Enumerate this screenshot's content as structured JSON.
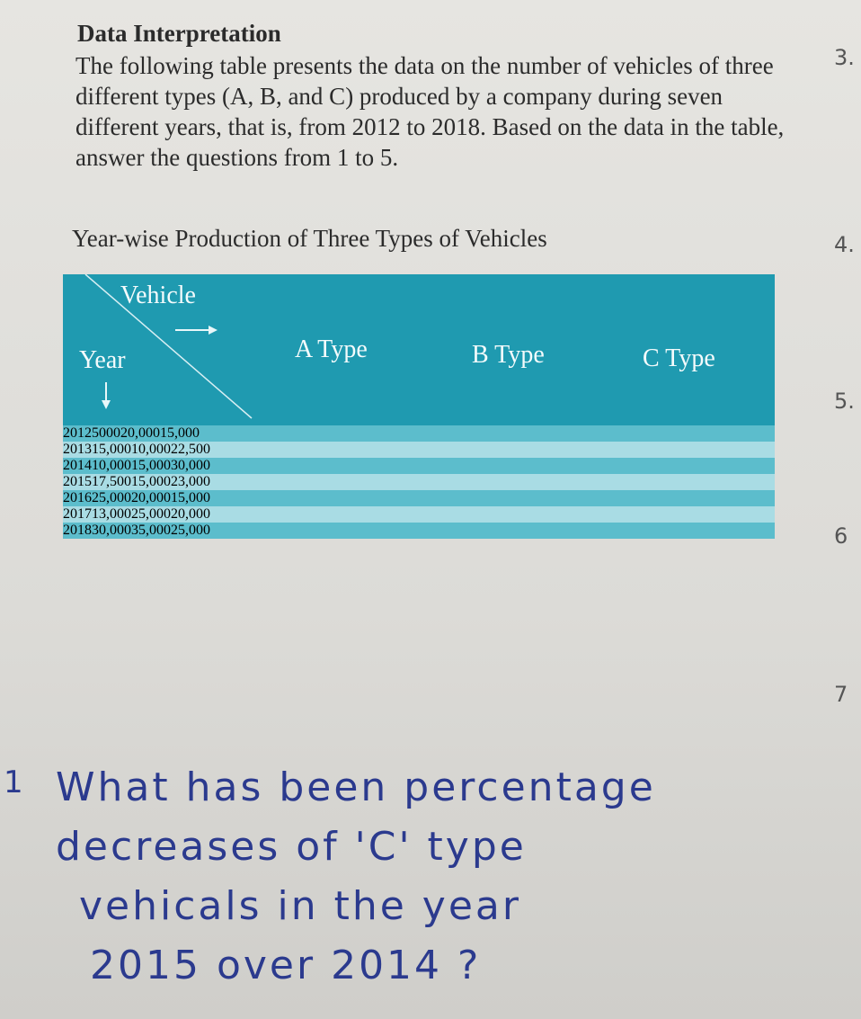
{
  "heading": "Data Interpretation",
  "paragraph": "The following table presents the data on the number of vehicles of three different types (A, B, and C) produced by a company during seven different years, that is, from 2012 to 2018. Based on the data in the table, answer the questions from 1 to 5.",
  "table_title": "Year-wise Production of Three Types of Vehicles",
  "margin_numbers": [
    "3.",
    "4.",
    "5.",
    "6",
    "7"
  ],
  "table": {
    "corner_top": "Vehicle",
    "corner_bottom": "Year",
    "columns": [
      "A Type",
      "B Type",
      "C Type"
    ],
    "rows": [
      [
        "2012",
        "5000",
        "20,000",
        "15,000"
      ],
      [
        "2013",
        "15,000",
        "10,000",
        "22,500"
      ],
      [
        "2014",
        "10,000",
        "15,000",
        "30,000"
      ],
      [
        "2015",
        "17,500",
        "15,000",
        "23,000"
      ],
      [
        "2016",
        "25,000",
        "20,000",
        "15,000"
      ],
      [
        "2017",
        "13,000",
        "25,000",
        "20,000"
      ],
      [
        "2018",
        "30,000",
        "35,000",
        "25,000"
      ]
    ]
  },
  "note": {
    "number": "1",
    "lines": [
      "What has been percentage",
      "decreases of 'C' type",
      "vehicals in the year",
      "2015 over 2014 ?"
    ]
  }
}
